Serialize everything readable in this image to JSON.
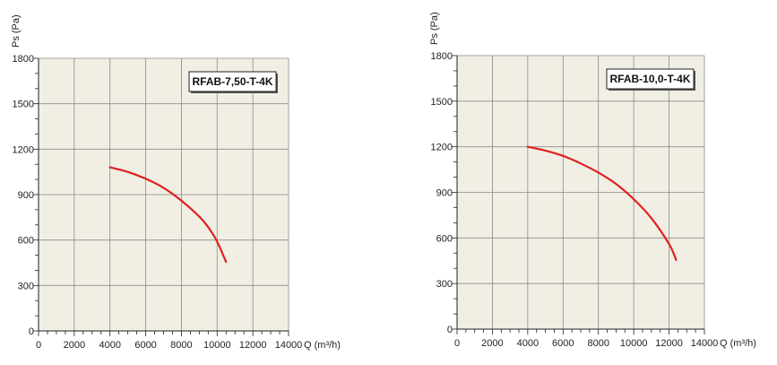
{
  "chart_data": [
    {
      "type": "line",
      "title": "RFAB-7,50-T-4K",
      "xlabel": "Q (m³/h)",
      "ylabel": "Ps (Pa)",
      "xlim": [
        0,
        14000
      ],
      "ylim": [
        0,
        1800
      ],
      "xticks": [
        "0",
        "2000",
        "4000",
        "6000",
        "8000",
        "10000",
        "12000",
        "14000"
      ],
      "yticks": [
        "0",
        "300",
        "600",
        "900",
        "1200",
        "1500",
        "1800"
      ],
      "grid": true,
      "series": [
        {
          "color": "#e02020",
          "x": [
            4000,
            5000,
            6000,
            7000,
            8000,
            9000,
            9500,
            10000,
            10500
          ],
          "y": [
            1080,
            1050,
            1005,
            945,
            860,
            755,
            685,
            590,
            455
          ]
        }
      ]
    },
    {
      "type": "line",
      "title": "RFAB-10,0-T-4K",
      "xlabel": "Q (m³/h)",
      "ylabel": "Ps (Pa)",
      "xlim": [
        0,
        14000
      ],
      "ylim": [
        0,
        1800
      ],
      "xticks": [
        "0",
        "2000",
        "4000",
        "6000",
        "8000",
        "10000",
        "12000",
        "14000"
      ],
      "yticks": [
        "0",
        "300",
        "600",
        "900",
        "1200",
        "1500",
        "1800"
      ],
      "grid": true,
      "series": [
        {
          "color": "#e02020",
          "x": [
            4000,
            5000,
            6000,
            7000,
            8000,
            9000,
            10000,
            11000,
            12000,
            12400
          ],
          "y": [
            1200,
            1175,
            1140,
            1090,
            1030,
            955,
            855,
            730,
            560,
            455
          ]
        }
      ]
    }
  ]
}
